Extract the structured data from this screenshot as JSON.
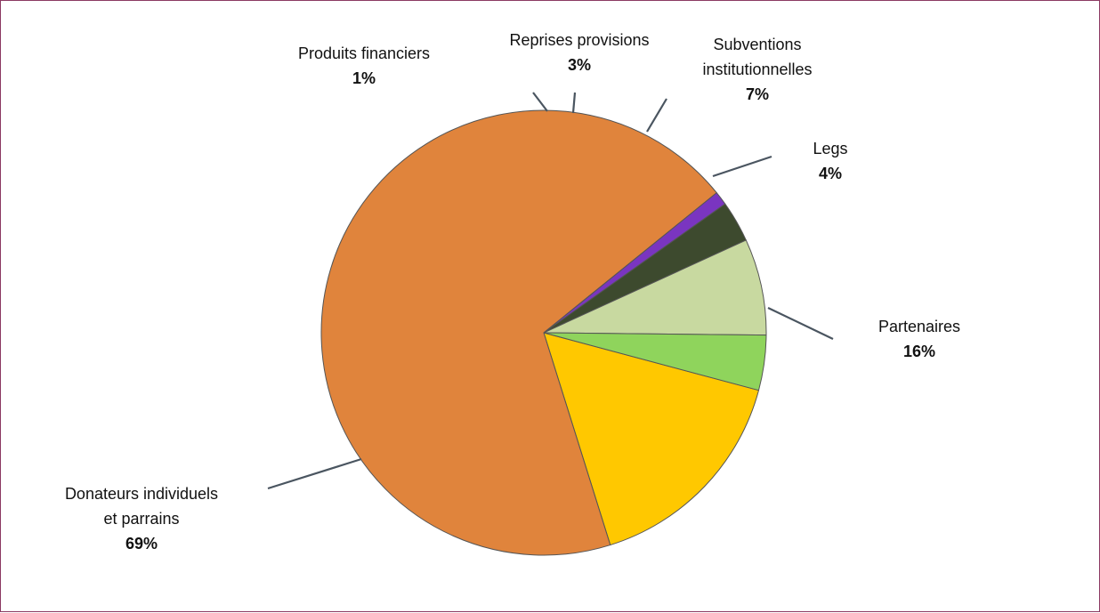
{
  "chart_data": {
    "type": "pie",
    "slices": [
      {
        "key": "partenaires",
        "label_lines": [
          "Partenaires"
        ],
        "percent_label": "16%",
        "value": 16,
        "color": "#ffc800"
      },
      {
        "key": "donateurs",
        "label_lines": [
          "Donateurs individuels",
          "et parrains"
        ],
        "percent_label": "69%",
        "value": 69,
        "color": "#e0843c"
      },
      {
        "key": "produits-financiers",
        "label_lines": [
          "Produits financiers"
        ],
        "percent_label": "1%",
        "value": 1,
        "color": "#7a35c0"
      },
      {
        "key": "reprises-provisions",
        "label_lines": [
          "Reprises provisions"
        ],
        "percent_label": "3%",
        "value": 3,
        "color": "#3d4a2e"
      },
      {
        "key": "subventions",
        "label_lines": [
          "Subventions",
          "institutionnelles"
        ],
        "percent_label": "7%",
        "value": 7,
        "color": "#c8d9a0"
      },
      {
        "key": "legs",
        "label_lines": [
          "Legs"
        ],
        "percent_label": "4%",
        "value": 4,
        "color": "#8fd45c"
      }
    ]
  }
}
